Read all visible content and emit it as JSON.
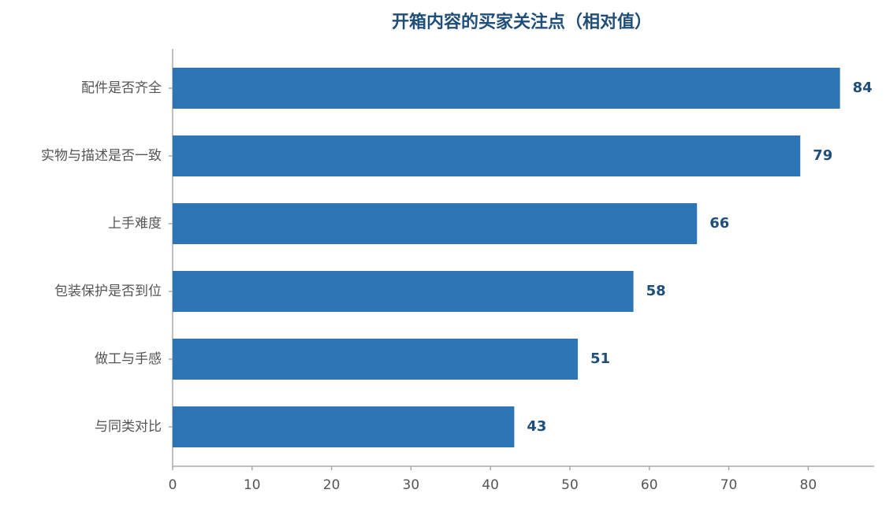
{
  "chart_data": {
    "type": "hbar",
    "title": "开箱内容的买家关注点（相对值）",
    "categories": [
      "配件是否齐全",
      "实物与描述是否一致",
      "上手难度",
      "包装保护是否到位",
      "做工与手感",
      "与同类对比"
    ],
    "values": [
      84,
      79,
      66,
      58,
      51,
      43
    ],
    "color": "#2e75b6",
    "xlim": [
      0,
      88.3
    ],
    "xticks": [
      0,
      10,
      20,
      30,
      40,
      50,
      60,
      70,
      80
    ]
  }
}
